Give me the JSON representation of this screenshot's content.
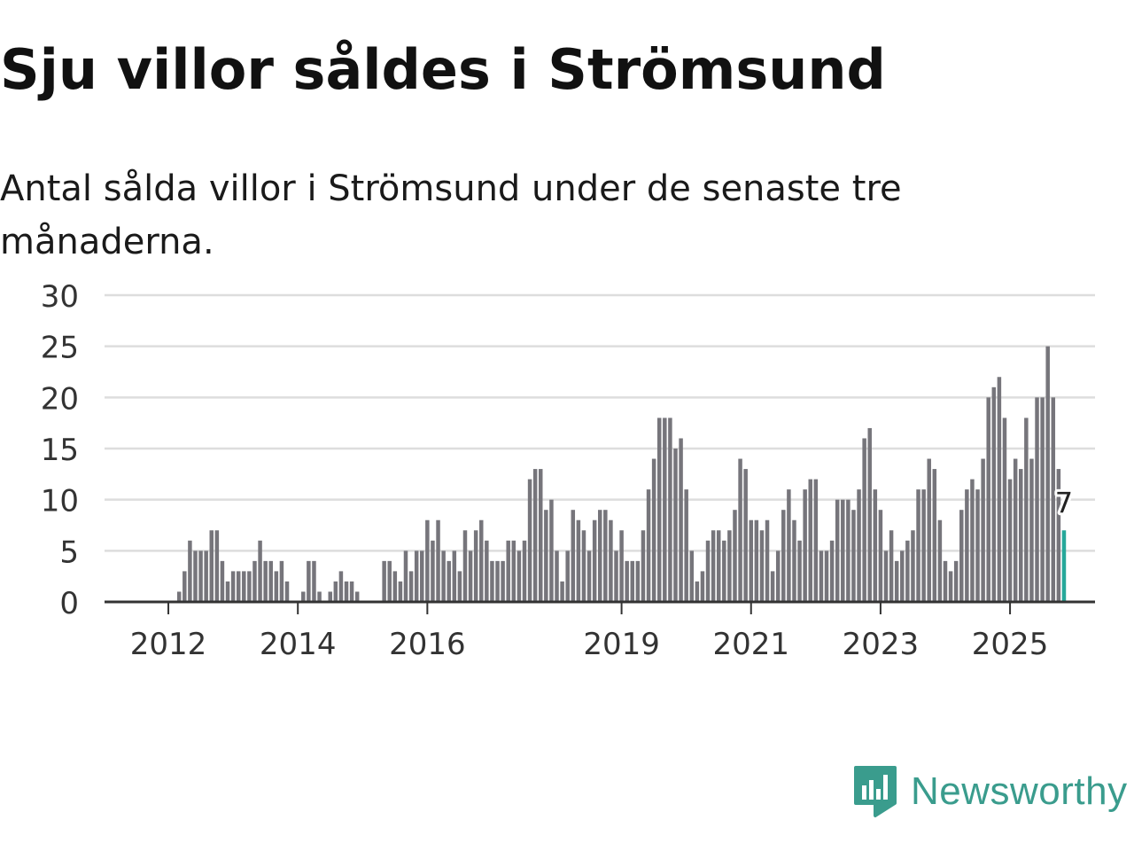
{
  "title": "Sju villor såldes i Strömsund",
  "subtitle": "Antal sålda villor i Strömsund under de senaste tre månaderna.",
  "brand": {
    "name": "Newsworthy",
    "color": "#3a9c8d"
  },
  "colors": {
    "bar": "#76757b",
    "highlight": "#26a89a",
    "grid": "#dddddd",
    "axis": "#333333"
  },
  "chart_data": {
    "type": "bar",
    "title": "Antal sålda villor i Strömsund under de senaste tre månaderna.",
    "xlabel": "",
    "ylabel": "",
    "ylim": [
      0,
      30
    ],
    "yticks": [
      0,
      5,
      10,
      15,
      20,
      25,
      30
    ],
    "grid": true,
    "start": "2011-01",
    "xticks": [
      {
        "label": "2012",
        "index": 11
      },
      {
        "label": "2014",
        "index": 35
      },
      {
        "label": "2016",
        "index": 59
      },
      {
        "label": "2019",
        "index": 95
      },
      {
        "label": "2021",
        "index": 119
      },
      {
        "label": "2023",
        "index": 143
      },
      {
        "label": "2025",
        "index": 167
      }
    ],
    "values": [
      0,
      0,
      0,
      0,
      0,
      0,
      0,
      0,
      0,
      0,
      0,
      0,
      0,
      1,
      3,
      6,
      5,
      5,
      5,
      7,
      7,
      4,
      2,
      3,
      3,
      3,
      3,
      4,
      6,
      4,
      4,
      3,
      4,
      2,
      0,
      0,
      1,
      4,
      4,
      1,
      0,
      1,
      2,
      3,
      2,
      2,
      1,
      0,
      0,
      0,
      0,
      4,
      4,
      3,
      2,
      5,
      3,
      5,
      5,
      8,
      6,
      8,
      5,
      4,
      5,
      3,
      7,
      5,
      7,
      8,
      6,
      4,
      4,
      4,
      6,
      6,
      5,
      6,
      12,
      13,
      13,
      9,
      10,
      5,
      2,
      5,
      9,
      8,
      7,
      5,
      8,
      9,
      9,
      8,
      5,
      7,
      4,
      4,
      4,
      7,
      11,
      14,
      18,
      18,
      18,
      15,
      16,
      11,
      5,
      2,
      3,
      6,
      7,
      7,
      6,
      7,
      9,
      14,
      13,
      8,
      8,
      7,
      8,
      3,
      5,
      9,
      11,
      8,
      6,
      11,
      12,
      12,
      5,
      5,
      6,
      10,
      10,
      10,
      9,
      11,
      16,
      17,
      11,
      9,
      5,
      7,
      4,
      5,
      6,
      7,
      11,
      11,
      14,
      13,
      8,
      4,
      3,
      4,
      9,
      11,
      12,
      11,
      14,
      20,
      21,
      22,
      18,
      12,
      14,
      13,
      18,
      14,
      20,
      20,
      25,
      20,
      13,
      7
    ],
    "highlight_index": 177,
    "highlight_label": "7"
  }
}
